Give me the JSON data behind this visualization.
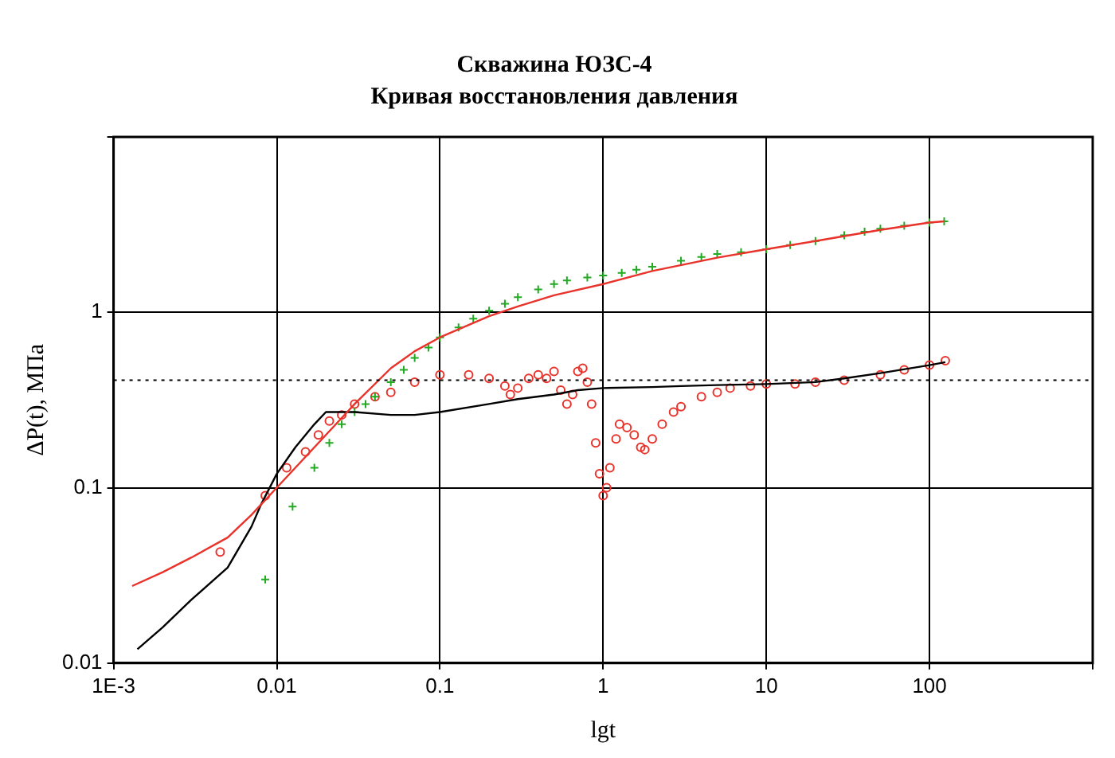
{
  "chart_data": {
    "type": "scatter",
    "title": "Скважина ЮЗС-4",
    "subtitle": "Кривая восстановления давления",
    "xlabel": "lgt",
    "ylabel": "ΔP(t), МПа",
    "log": "xy",
    "grid": true,
    "legend": false,
    "xlim": [
      0.001,
      1000
    ],
    "xticks": [
      {
        "value": 0.001,
        "label": "1E-3"
      },
      0.01,
      0.1,
      1,
      10,
      100,
      {
        "value": 1000,
        "label": null
      }
    ],
    "ylim": [
      0.01,
      10
    ],
    "yticks": [
      0.01,
      0.1,
      1,
      {
        "value": 10,
        "label": null
      }
    ],
    "ref_lines": [
      {
        "axis": "y",
        "value": 0.41,
        "color": "#000000",
        "line_style": "dotted"
      }
    ],
    "series": [
      {
        "color": "#22aa22",
        "marker": "cross",
        "x": [
          0.0085,
          0.0125,
          0.017,
          0.021,
          0.025,
          0.03,
          0.035,
          0.04,
          0.05,
          0.06,
          0.07,
          0.085,
          0.1,
          0.13,
          0.16,
          0.2,
          0.25,
          0.3,
          0.4,
          0.5,
          0.6,
          0.8,
          1,
          1.3,
          1.6,
          2,
          3,
          4,
          5,
          7,
          10,
          14,
          20,
          30,
          40,
          50,
          70,
          100,
          123
        ],
        "values": [
          0.03,
          0.078,
          0.13,
          0.18,
          0.23,
          0.27,
          0.3,
          0.33,
          0.4,
          0.47,
          0.55,
          0.63,
          0.72,
          0.82,
          0.92,
          1.02,
          1.12,
          1.22,
          1.35,
          1.45,
          1.52,
          1.58,
          1.62,
          1.68,
          1.75,
          1.82,
          1.97,
          2.07,
          2.15,
          2.2,
          2.29,
          2.42,
          2.55,
          2.75,
          2.88,
          3.0,
          3.12,
          3.25,
          3.3
        ]
      },
      {
        "type": "line",
        "color": "#e8322a",
        "marker": "none",
        "line_style": "solid",
        "x": [
          0.0013,
          0.002,
          0.003,
          0.005,
          0.007,
          0.01,
          0.015,
          0.02,
          0.03,
          0.05,
          0.07,
          0.1,
          0.2,
          0.3,
          0.5,
          1,
          2,
          5,
          10,
          20,
          50,
          100,
          123
        ],
        "values": [
          0.0275,
          0.033,
          0.04,
          0.052,
          0.07,
          0.1,
          0.15,
          0.2,
          0.3,
          0.48,
          0.6,
          0.72,
          0.95,
          1.08,
          1.25,
          1.45,
          1.72,
          2.05,
          2.29,
          2.55,
          2.95,
          3.25,
          3.3
        ]
      },
      {
        "color": "#e8322a",
        "marker": "circle",
        "x": [
          0.0045,
          0.0085,
          0.0115,
          0.015,
          0.018,
          0.021,
          0.025,
          0.03,
          0.04,
          0.05,
          0.07,
          0.1,
          0.15,
          0.2,
          0.25,
          0.27,
          0.3,
          0.35,
          0.4,
          0.45,
          0.5,
          0.55,
          0.6,
          0.65,
          0.7,
          0.75,
          0.8,
          0.85,
          0.9,
          0.95,
          1.0,
          1.05,
          1.1,
          1.2,
          1.26,
          1.4,
          1.55,
          1.7,
          1.8,
          2.0,
          2.3,
          2.7,
          3,
          4,
          5,
          6,
          8,
          10,
          15,
          20,
          30,
          50,
          70,
          100,
          125
        ],
        "values": [
          0.043,
          0.09,
          0.13,
          0.16,
          0.2,
          0.24,
          0.26,
          0.3,
          0.33,
          0.35,
          0.4,
          0.44,
          0.44,
          0.42,
          0.38,
          0.34,
          0.37,
          0.42,
          0.44,
          0.42,
          0.46,
          0.36,
          0.3,
          0.34,
          0.46,
          0.48,
          0.4,
          0.3,
          0.18,
          0.12,
          0.09,
          0.1,
          0.13,
          0.19,
          0.23,
          0.22,
          0.2,
          0.17,
          0.165,
          0.19,
          0.23,
          0.27,
          0.29,
          0.33,
          0.35,
          0.37,
          0.38,
          0.39,
          0.39,
          0.4,
          0.41,
          0.44,
          0.47,
          0.5,
          0.53
        ]
      },
      {
        "type": "line",
        "color": "#000000",
        "marker": "none",
        "line_style": "solid",
        "x": [
          0.0014,
          0.002,
          0.003,
          0.005,
          0.007,
          0.008,
          0.01,
          0.013,
          0.017,
          0.02,
          0.03,
          0.05,
          0.07,
          0.1,
          0.2,
          0.3,
          0.5,
          0.7,
          1,
          2,
          3,
          5,
          10,
          20,
          30,
          50,
          100,
          125
        ],
        "values": [
          0.012,
          0.016,
          0.023,
          0.035,
          0.06,
          0.08,
          0.12,
          0.17,
          0.23,
          0.27,
          0.27,
          0.26,
          0.26,
          0.27,
          0.3,
          0.32,
          0.34,
          0.36,
          0.37,
          0.375,
          0.38,
          0.385,
          0.39,
          0.4,
          0.42,
          0.45,
          0.5,
          0.52
        ]
      }
    ]
  }
}
